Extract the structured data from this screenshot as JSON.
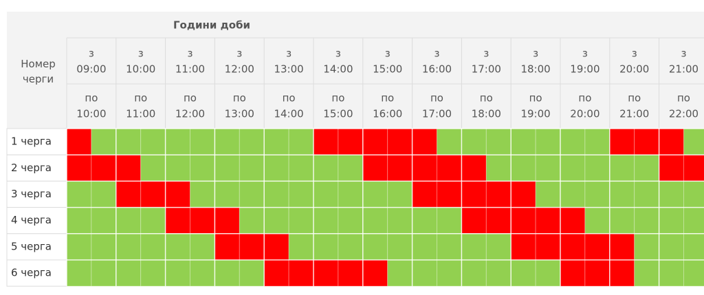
{
  "title": "Години доби",
  "row_header": "Номер черги",
  "colors": {
    "outage": "#ff0000",
    "power": "#92d050"
  },
  "columns": [
    {
      "from": "з",
      "start": "09:00",
      "to": "по",
      "end": "10:00"
    },
    {
      "from": "з",
      "start": "10:00",
      "to": "по",
      "end": "11:00"
    },
    {
      "from": "з",
      "start": "11:00",
      "to": "по",
      "end": "12:00"
    },
    {
      "from": "з",
      "start": "12:00",
      "to": "по",
      "end": "13:00"
    },
    {
      "from": "з",
      "start": "13:00",
      "to": "по",
      "end": "14:00"
    },
    {
      "from": "з",
      "start": "14:00",
      "to": "по",
      "end": "15:00"
    },
    {
      "from": "з",
      "start": "15:00",
      "to": "по",
      "end": "16:00"
    },
    {
      "from": "з",
      "start": "16:00",
      "to": "по",
      "end": "17:00"
    },
    {
      "from": "з",
      "start": "17:00",
      "to": "по",
      "end": "18:00"
    },
    {
      "from": "з",
      "start": "18:00",
      "to": "по",
      "end": "19:00"
    },
    {
      "from": "з",
      "start": "19:00",
      "to": "по",
      "end": "20:00"
    },
    {
      "from": "з",
      "start": "20:00",
      "to": "по",
      "end": "21:00"
    },
    {
      "from": "з",
      "start": "21:00",
      "to": "по",
      "end": "22:00"
    }
  ],
  "rows": [
    {
      "label": "1 черга",
      "outage": [
        1,
        0,
        0,
        0,
        0,
        0,
        0,
        0,
        0,
        0,
        1,
        1,
        1,
        1,
        1,
        0,
        0,
        0,
        0,
        0,
        0,
        0,
        1,
        1,
        1,
        0
      ]
    },
    {
      "label": "2 черга",
      "outage": [
        1,
        1,
        1,
        0,
        0,
        0,
        0,
        0,
        0,
        0,
        0,
        0,
        1,
        1,
        1,
        1,
        1,
        0,
        0,
        0,
        0,
        0,
        0,
        0,
        1,
        1
      ]
    },
    {
      "label": "3 черга",
      "outage": [
        0,
        0,
        1,
        1,
        1,
        0,
        0,
        0,
        0,
        0,
        0,
        0,
        0,
        0,
        1,
        1,
        1,
        1,
        1,
        0,
        0,
        0,
        0,
        0,
        0,
        0
      ]
    },
    {
      "label": "4 черга",
      "outage": [
        0,
        0,
        0,
        0,
        1,
        1,
        1,
        0,
        0,
        0,
        0,
        0,
        0,
        0,
        0,
        0,
        1,
        1,
        1,
        1,
        1,
        0,
        0,
        0,
        0,
        0
      ]
    },
    {
      "label": "5 черга",
      "outage": [
        0,
        0,
        0,
        0,
        0,
        0,
        1,
        1,
        1,
        0,
        0,
        0,
        0,
        0,
        0,
        0,
        0,
        0,
        1,
        1,
        1,
        1,
        1,
        0,
        0,
        0
      ]
    },
    {
      "label": "6 черга",
      "outage": [
        0,
        0,
        0,
        0,
        0,
        0,
        0,
        0,
        1,
        1,
        1,
        1,
        1,
        0,
        0,
        0,
        0,
        0,
        0,
        0,
        1,
        1,
        1,
        0,
        0,
        0
      ]
    }
  ]
}
